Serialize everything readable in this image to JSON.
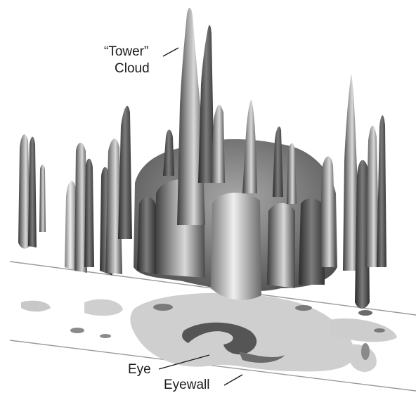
{
  "figure": {
    "labels": {
      "tower_line1": "“Tower”",
      "tower_line2": "Cloud",
      "eye": "Eye",
      "eyewall": "Eyewall"
    },
    "colors": {
      "background": "#ffffff",
      "cloud_dark": "#3c3c3c",
      "cloud_mid": "#8a8a8a",
      "cloud_light": "#d6d6d6",
      "ground_light": "#cfcfcf",
      "ground_dark": "#5a5a5a",
      "plane_line": "#9a9a9a",
      "text": "#1a1a1a"
    }
  }
}
